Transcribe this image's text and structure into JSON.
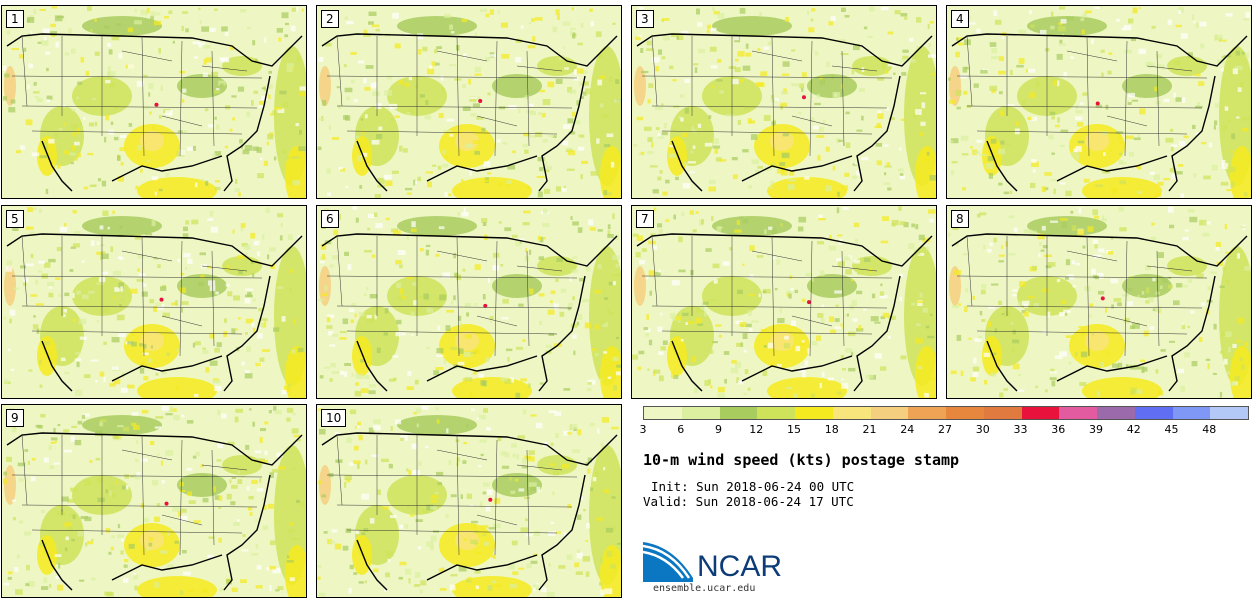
{
  "panels": [
    {
      "label": "1"
    },
    {
      "label": "2"
    },
    {
      "label": "3"
    },
    {
      "label": "4"
    },
    {
      "label": "5"
    },
    {
      "label": "6"
    },
    {
      "label": "7"
    },
    {
      "label": "8"
    },
    {
      "label": "9"
    },
    {
      "label": "10"
    }
  ],
  "colorbar": {
    "colors": [
      "#eef7c4",
      "#dcefa0",
      "#a9cc5f",
      "#cfe35a",
      "#f5ea1f",
      "#f8e57b",
      "#f4cf7f",
      "#eea454",
      "#e6873d",
      "#e07a3e",
      "#e8123c",
      "#e25ba0",
      "#9b6aaa",
      "#5f6ef2",
      "#7f98f5",
      "#b4c8f7"
    ],
    "tick_labels": [
      "3",
      "6",
      "9",
      "12",
      "15",
      "18",
      "21",
      "24",
      "27",
      "30",
      "33",
      "36",
      "39",
      "42",
      "45",
      "48"
    ]
  },
  "title": "10-m wind speed (kts) postage stamp",
  "init": "Init: Sun 2018-06-24 00 UTC",
  "valid": "Valid: Sun 2018-06-24 17 UTC",
  "logo_text": "NCAR",
  "site": "ensemble.ucar.edu"
}
